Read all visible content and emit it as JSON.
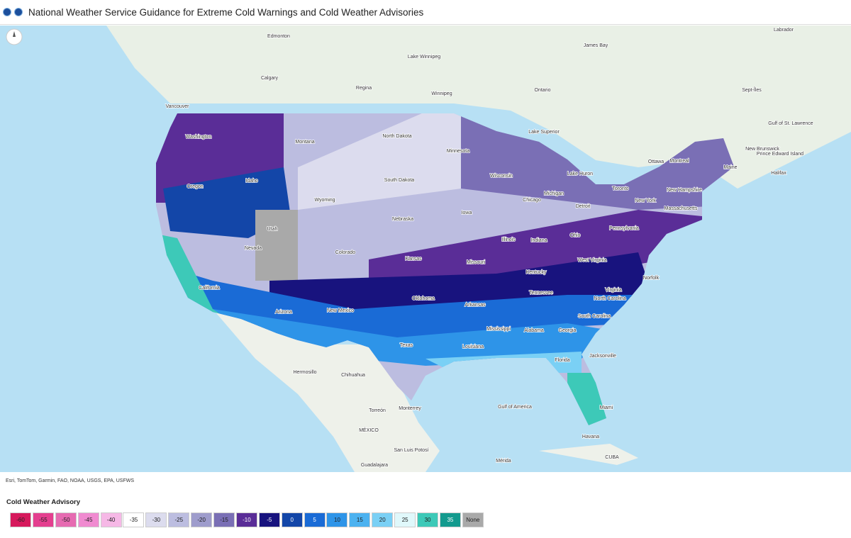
{
  "header": {
    "title": "National Weather Service Guidance for Extreme Cold Warnings and Cold Weather Advisories"
  },
  "map": {
    "attribution": "Esri, TomTom, Garmin, FAO, NOAA, USGS, EPA, USFWS",
    "place_labels": [
      "Edmonton",
      "Calgary",
      "Regina",
      "Winnipeg",
      "Lake Winnipeg",
      "Ontario",
      "James Bay",
      "Labrador",
      "Vancouver",
      "Washington",
      "Oregon",
      "Idaho",
      "Montana",
      "Wyoming",
      "Utah",
      "Nevada",
      "California",
      "Arizona",
      "New Mexico",
      "Colorado",
      "North Dakota",
      "South Dakota",
      "Nebraska",
      "Kansas",
      "Oklahoma",
      "Texas",
      "Minnesota",
      "Iowa",
      "Missouri",
      "Arkansas",
      "Louisiana",
      "Wisconsin",
      "Illinois",
      "Michigan",
      "Indiana",
      "Ohio",
      "Kentucky",
      "Tennessee",
      "Mississippi",
      "Alabama",
      "Georgia",
      "Florida",
      "South Carolina",
      "North Carolina",
      "Virginia",
      "West Virginia",
      "Pennsylvania",
      "New York",
      "Maine",
      "New Hampshire",
      "Massachusetts",
      "Lake Superior",
      "Lake Huron",
      "Toronto",
      "Ottawa",
      "Montreal",
      "Chicago",
      "Detroit",
      "Norfolk",
      "Jacksonville",
      "Miami",
      "Halifax",
      "Sept-Îles",
      "Gulf of St. Lawrence",
      "New Brunswick",
      "Prince Edward Island",
      "Hermosillo",
      "Chihuahua",
      "Torreón",
      "Monterrey",
      "MÉXICO",
      "San Luis Potosí",
      "Guadalajara",
      "Mérida",
      "Havana",
      "CUBA",
      "Gulf of America"
    ]
  },
  "legend": {
    "title": "Cold Weather Advisory",
    "items": [
      {
        "label": "-60",
        "color": "#d6195c"
      },
      {
        "label": "-55",
        "color": "#e43f8f"
      },
      {
        "label": "-50",
        "color": "#e66bb1"
      },
      {
        "label": "-45",
        "color": "#f08ad0"
      },
      {
        "label": "-40",
        "color": "#f6b8e6"
      },
      {
        "label": "-35",
        "color": "#ffffff"
      },
      {
        "label": "-30",
        "color": "#dcdcee"
      },
      {
        "label": "-25",
        "color": "#bcbde0"
      },
      {
        "label": "-20",
        "color": "#9e9ccc"
      },
      {
        "label": "-15",
        "color": "#7a6fb5"
      },
      {
        "label": "-10",
        "color": "#5a2d97"
      },
      {
        "label": "-5",
        "color": "#18137e"
      },
      {
        "label": "0",
        "color": "#1346a8"
      },
      {
        "label": "5",
        "color": "#1a6bd6"
      },
      {
        "label": "10",
        "color": "#2e94e8"
      },
      {
        "label": "15",
        "color": "#4cb2f0"
      },
      {
        "label": "20",
        "color": "#7ad0f5"
      },
      {
        "label": "25",
        "color": "#e0f8fb"
      },
      {
        "label": "30",
        "color": "#3dc9b8"
      },
      {
        "label": "35",
        "color": "#139a8e"
      },
      {
        "label": "None",
        "color": "#a9a9a9"
      }
    ]
  }
}
